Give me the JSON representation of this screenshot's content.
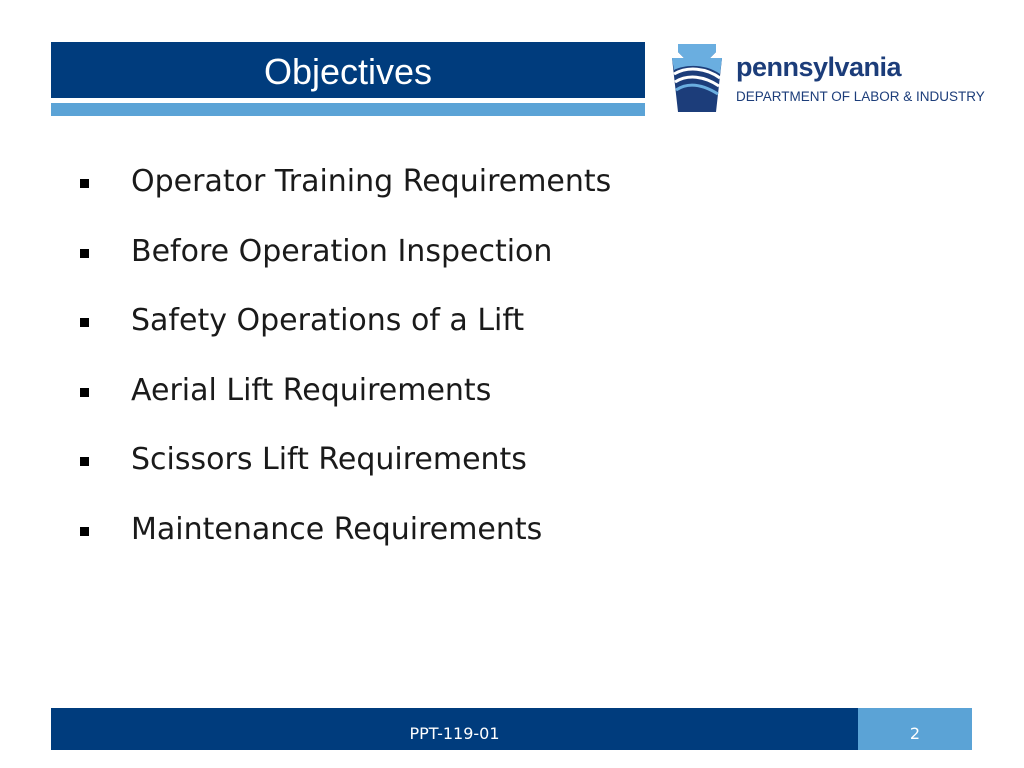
{
  "header": {
    "title": "Objectives"
  },
  "logo": {
    "name": "pennsylvania",
    "department": "DEPARTMENT OF LABOR & INDUSTRY"
  },
  "bullets": [
    "Operator Training Requirements",
    "Before Operation Inspection",
    "Safety Operations of a Lift",
    "Aerial Lift Requirements",
    "Scissors Lift Requirements",
    "Maintenance Requirements"
  ],
  "footer": {
    "code": "PPT-119-01",
    "page_number": "2"
  },
  "colors": {
    "primary": "#003c7d",
    "accent": "#5ba3d6"
  }
}
